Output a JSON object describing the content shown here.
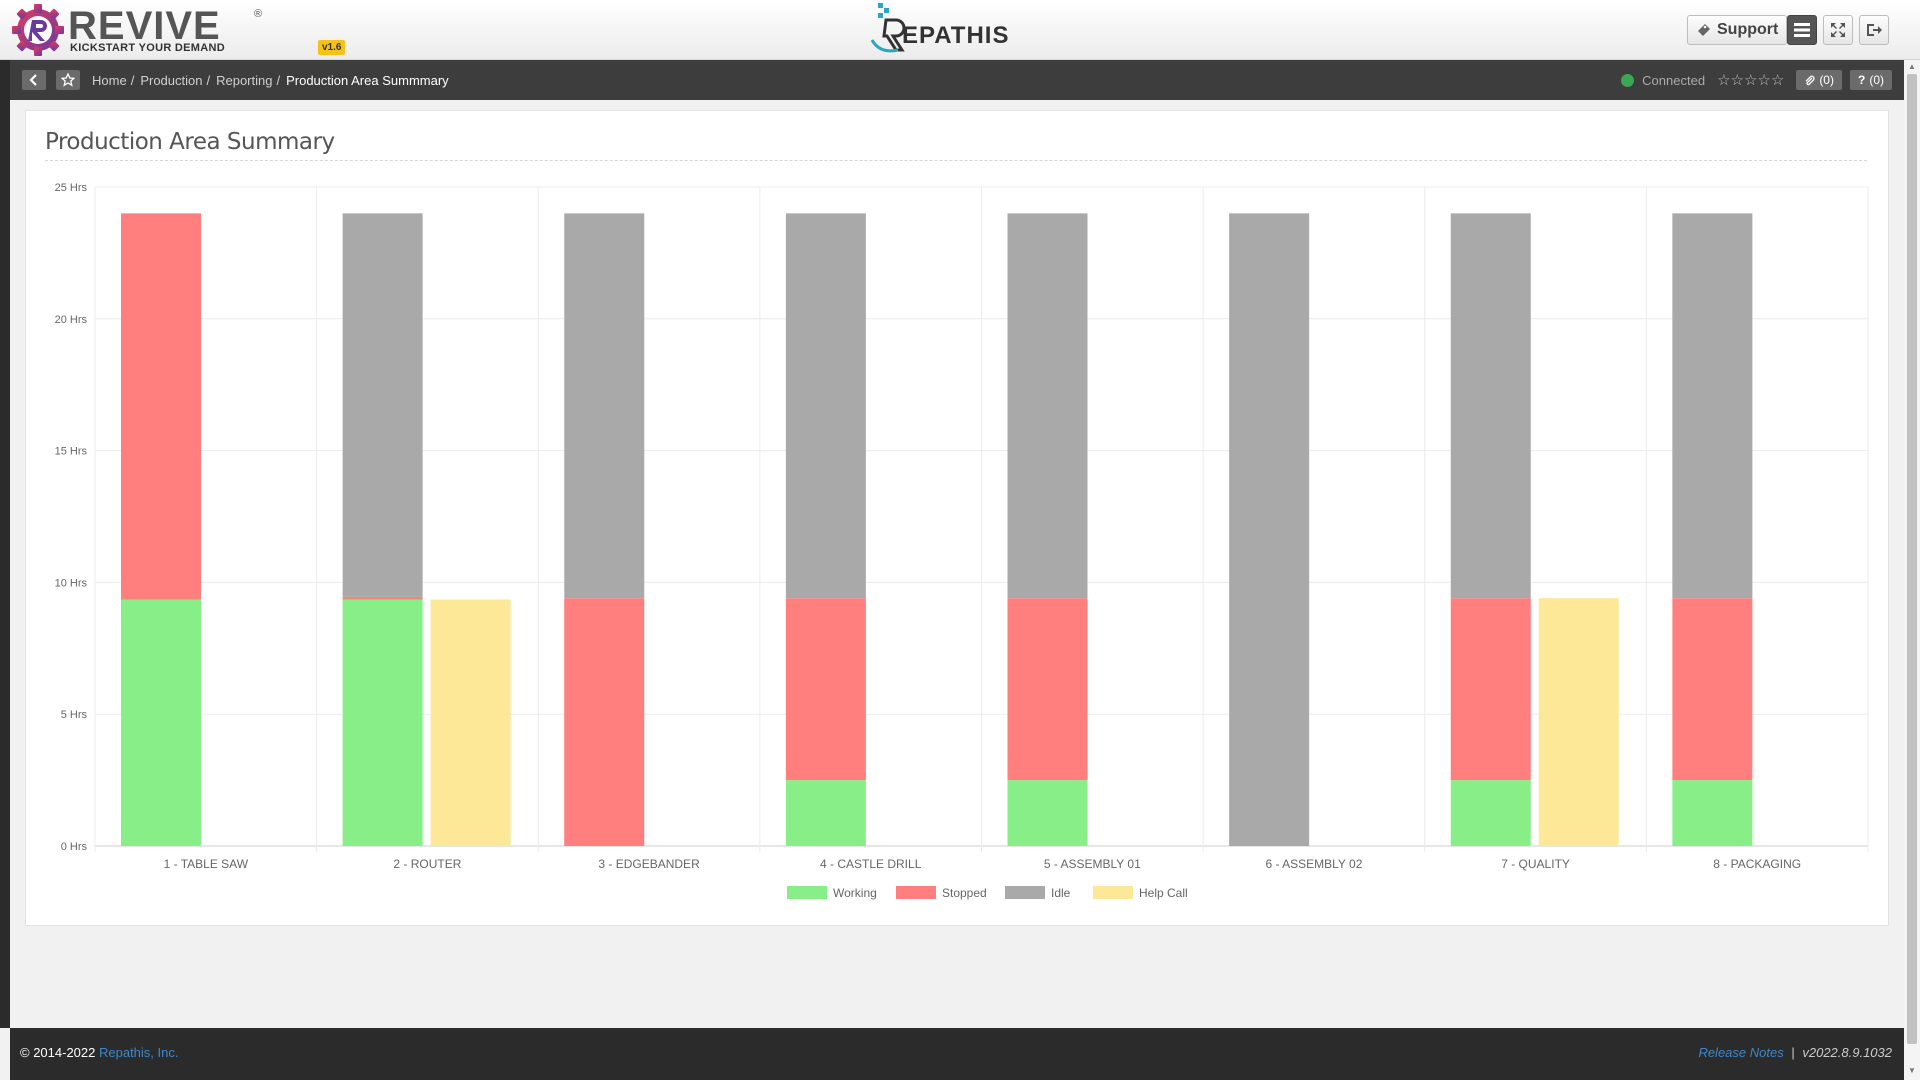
{
  "header": {
    "brand_word": "REVIVE",
    "brand_reg": "®",
    "brand_tagline": "KICKSTART YOUR DEMAND",
    "version": "v1.6",
    "center_brand": "EPATHIS",
    "support_label": "Support"
  },
  "breadcrumb": {
    "items": [
      "Home",
      "Production",
      "Reporting"
    ],
    "current": "Production Area Summmary",
    "status": "Connected",
    "stars": "☆☆☆☆☆",
    "attachments_count": "(0)",
    "help_count": "(0)"
  },
  "page": {
    "title": "Production Area Summary"
  },
  "colors": {
    "working": "#88ee88",
    "stopped": "#ff7f7f",
    "idle": "#a9a9a9",
    "help_call": "#fde898"
  },
  "chart_data": {
    "type": "bar",
    "stacked": true,
    "categories": [
      "1 - TABLE SAW",
      "2 - ROUTER",
      "3 - EDGEBANDER",
      "4 - CASTLE DRILL",
      "5 - ASSEMBLY 01",
      "6 - ASSEMBLY 02",
      "7 - QUALITY",
      "8 - PACKAGING"
    ],
    "series": [
      {
        "name": "Working",
        "stack": "status",
        "color": "#88ee88",
        "values": [
          9.35,
          9.35,
          0,
          2.5,
          2.5,
          0,
          2.5,
          2.5
        ]
      },
      {
        "name": "Stopped",
        "stack": "status",
        "color": "#ff7f7f",
        "values": [
          14.65,
          0.1,
          9.4,
          6.9,
          6.9,
          0,
          6.9,
          6.9
        ]
      },
      {
        "name": "Idle",
        "stack": "status",
        "color": "#a9a9a9",
        "values": [
          0,
          14.55,
          14.6,
          14.6,
          14.6,
          24,
          14.6,
          14.6
        ]
      },
      {
        "name": "Help Call",
        "stack": "help",
        "color": "#fde898",
        "values": [
          0,
          9.35,
          0,
          0,
          0,
          0,
          9.4,
          0
        ]
      }
    ],
    "yticks": [
      "0 Hrs",
      "5 Hrs",
      "10 Hrs",
      "15 Hrs",
      "20 Hrs",
      "25 Hrs"
    ],
    "ylim": [
      0,
      25
    ],
    "legend_position": "bottom",
    "grid": true
  },
  "footer": {
    "copyright": "© 2014-2022",
    "company": "Repathis, Inc.",
    "release_notes": "Release Notes",
    "separator": "|",
    "build": "v2022.8.9.1032"
  }
}
